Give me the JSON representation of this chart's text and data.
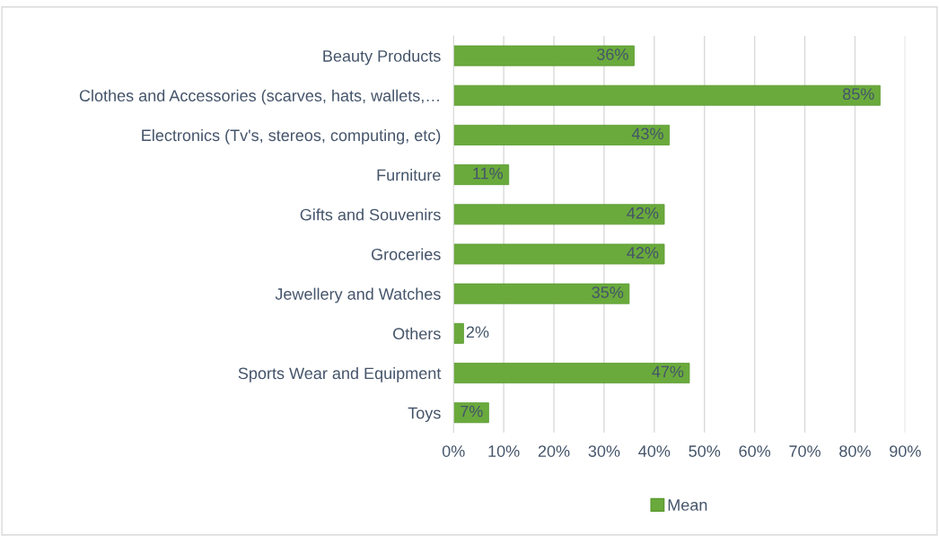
{
  "chart_data": {
    "type": "bar",
    "orientation": "horizontal",
    "categories": [
      "Beauty Products",
      "Clothes and Accessories (scarves, hats, wallets,…",
      "Electronics (Tv's, stereos, computing, etc)",
      "Furniture",
      "Gifts and Souvenirs",
      "Groceries",
      "Jewellery and Watches",
      "Others",
      "Sports Wear and Equipment",
      "Toys"
    ],
    "series": [
      {
        "name": "Mean",
        "color": "#6aaa3c",
        "values": [
          36,
          85,
          43,
          11,
          42,
          42,
          35,
          2,
          47,
          7
        ],
        "value_labels": [
          "36%",
          "85%",
          "43%",
          "11%",
          "42%",
          "42%",
          "35%",
          "2%",
          "47%",
          "7%"
        ]
      }
    ],
    "xlim": [
      0,
      90
    ],
    "xticks": [
      {
        "value": 0,
        "label": "0%"
      },
      {
        "value": 10,
        "label": "10%"
      },
      {
        "value": 20,
        "label": "20%"
      },
      {
        "value": 30,
        "label": "30%"
      },
      {
        "value": 40,
        "label": "40%"
      },
      {
        "value": 50,
        "label": "50%"
      },
      {
        "value": 60,
        "label": "60%"
      },
      {
        "value": 70,
        "label": "70%"
      },
      {
        "value": 80,
        "label": "80%"
      },
      {
        "value": 90,
        "label": "90%"
      }
    ],
    "grid": "x",
    "legend": "bottom"
  }
}
